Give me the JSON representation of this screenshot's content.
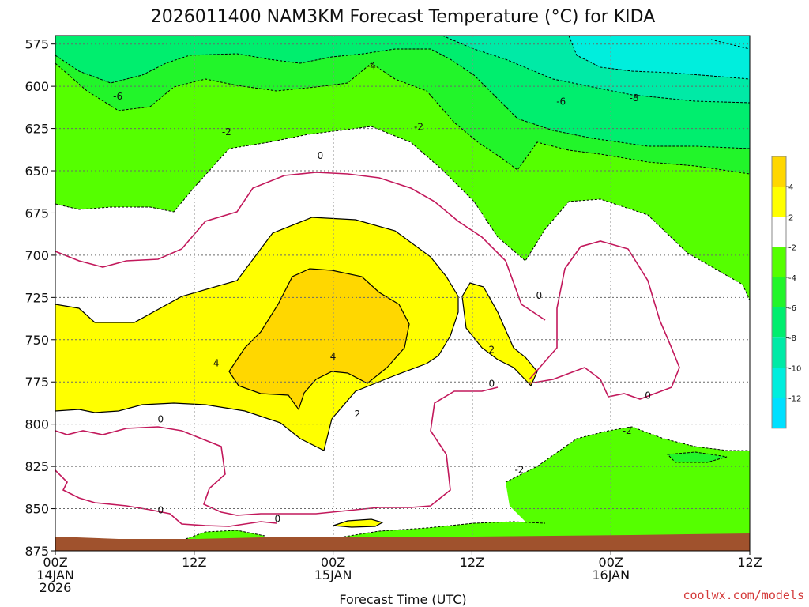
{
  "chart_data": {
    "type": "time-height contour",
    "title": "2026011400 NAM3KM Forecast Temperature (°C) for KIDA",
    "xlabel": "Forecast Time (UTC)",
    "ylabel": "",
    "x_range_hours": [
      0,
      60
    ],
    "y_range_hpa": [
      570,
      875
    ],
    "y_axis_inverted": true,
    "grid": true,
    "x_ticks": [
      {
        "hour": 0,
        "lines": [
          "00Z",
          "14JAN",
          "2026"
        ]
      },
      {
        "hour": 12,
        "lines": [
          "12Z"
        ]
      },
      {
        "hour": 24,
        "lines": [
          "00Z",
          "15JAN"
        ]
      },
      {
        "hour": 36,
        "lines": [
          "12Z"
        ]
      },
      {
        "hour": 48,
        "lines": [
          "00Z",
          "16JAN"
        ]
      },
      {
        "hour": 60,
        "lines": [
          "12Z"
        ]
      }
    ],
    "y_ticks": [
      575,
      600,
      625,
      650,
      675,
      700,
      725,
      750,
      775,
      800,
      825,
      850,
      875
    ],
    "color_scale": {
      "labels": [
        "4",
        "2",
        "-2",
        "-4",
        "-6",
        "-8",
        "-10",
        "-12"
      ],
      "bands": [
        {
          "label": "4 to 6",
          "color": "#ffd700"
        },
        {
          "label": "2 to 4",
          "color": "#ffff00"
        },
        {
          "label": "-2 to 2",
          "color": "#ffffff"
        },
        {
          "label": "-4 to -2",
          "color": "#55ff00"
        },
        {
          "label": "-6 to -4",
          "color": "#22f52a"
        },
        {
          "label": "-8 to -6",
          "color": "#00ee6e"
        },
        {
          "label": "-10 to -8",
          "color": "#00eaa6"
        },
        {
          "label": "-12 to -10",
          "color": "#00eedd"
        },
        {
          "label": "below -12",
          "color": "#00e0ff"
        }
      ]
    },
    "contour_labels": [
      {
        "text": "-4",
        "hour": 27.3,
        "hpa": 588
      },
      {
        "text": "-6",
        "hour": 5.4,
        "hpa": 606
      },
      {
        "text": "-6",
        "hour": 43.7,
        "hpa": 609
      },
      {
        "text": "-8",
        "hour": 50.0,
        "hpa": 607
      },
      {
        "text": "-2",
        "hour": 14.8,
        "hpa": 627
      },
      {
        "text": "-2",
        "hour": 31.4,
        "hpa": 624
      },
      {
        "text": "0",
        "hour": 22.9,
        "hpa": 641
      },
      {
        "text": "0",
        "hour": 41.8,
        "hpa": 724
      },
      {
        "text": "2",
        "hour": 37.7,
        "hpa": 756
      },
      {
        "text": "4",
        "hour": 13.9,
        "hpa": 764
      },
      {
        "text": "4",
        "hour": 24.0,
        "hpa": 760
      },
      {
        "text": "0",
        "hour": 37.7,
        "hpa": 776
      },
      {
        "text": "0",
        "hour": 51.2,
        "hpa": 783
      },
      {
        "text": "2",
        "hour": 26.1,
        "hpa": 794
      },
      {
        "text": "0",
        "hour": 9.1,
        "hpa": 797
      },
      {
        "text": "-2",
        "hour": 49.4,
        "hpa": 804
      },
      {
        "text": "-2",
        "hour": 40.1,
        "hpa": 827
      },
      {
        "text": "0",
        "hour": 9.1,
        "hpa": 851
      },
      {
        "text": "0",
        "hour": 19.2,
        "hpa": 856
      }
    ],
    "credit": "coolwx.com/models"
  },
  "colors": {
    "ground": "#a0522d",
    "contour_positive": "#c2185b",
    "contour_line": "#000000"
  }
}
